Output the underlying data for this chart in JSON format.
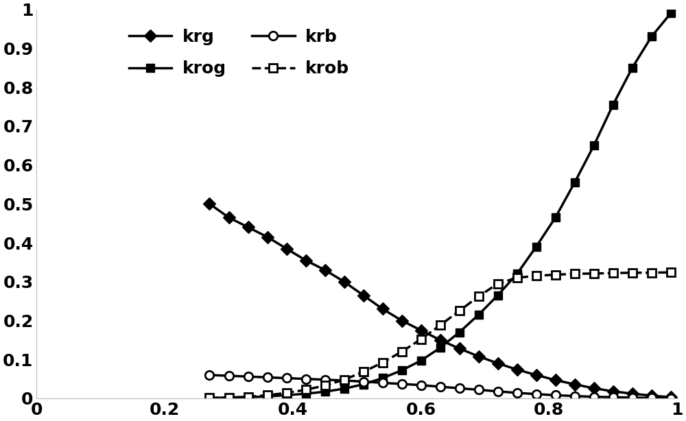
{
  "krg_x": [
    0.27,
    0.3,
    0.33,
    0.36,
    0.39,
    0.42,
    0.45,
    0.48,
    0.51,
    0.54,
    0.57,
    0.6,
    0.63,
    0.66,
    0.69,
    0.72,
    0.75,
    0.78,
    0.81,
    0.84,
    0.87,
    0.9,
    0.93,
    0.96,
    0.99
  ],
  "krg_y": [
    0.5,
    0.465,
    0.44,
    0.415,
    0.385,
    0.355,
    0.33,
    0.3,
    0.265,
    0.23,
    0.2,
    0.175,
    0.15,
    0.128,
    0.108,
    0.09,
    0.074,
    0.06,
    0.047,
    0.036,
    0.026,
    0.018,
    0.012,
    0.007,
    0.003
  ],
  "krog_x": [
    0.27,
    0.3,
    0.33,
    0.36,
    0.39,
    0.42,
    0.45,
    0.48,
    0.51,
    0.54,
    0.57,
    0.6,
    0.63,
    0.66,
    0.69,
    0.72,
    0.75,
    0.78,
    0.81,
    0.84,
    0.87,
    0.9,
    0.93,
    0.96,
    0.99
  ],
  "krog_y": [
    0.001,
    0.002,
    0.003,
    0.005,
    0.008,
    0.012,
    0.017,
    0.025,
    0.036,
    0.052,
    0.072,
    0.097,
    0.13,
    0.17,
    0.215,
    0.265,
    0.32,
    0.39,
    0.465,
    0.555,
    0.65,
    0.755,
    0.85,
    0.93,
    0.99
  ],
  "krb_x": [
    0.27,
    0.3,
    0.33,
    0.36,
    0.39,
    0.42,
    0.45,
    0.48,
    0.51,
    0.54,
    0.57,
    0.6,
    0.63,
    0.66,
    0.69,
    0.72,
    0.75,
    0.78,
    0.81,
    0.84,
    0.87,
    0.9,
    0.93,
    0.96,
    0.99
  ],
  "krb_y": [
    0.06,
    0.058,
    0.056,
    0.054,
    0.052,
    0.05,
    0.048,
    0.046,
    0.043,
    0.04,
    0.037,
    0.034,
    0.03,
    0.026,
    0.022,
    0.018,
    0.014,
    0.011,
    0.008,
    0.006,
    0.004,
    0.003,
    0.002,
    0.001,
    0.0005
  ],
  "krob_x": [
    0.27,
    0.3,
    0.33,
    0.36,
    0.39,
    0.42,
    0.45,
    0.48,
    0.51,
    0.54,
    0.57,
    0.6,
    0.63,
    0.66,
    0.69,
    0.72,
    0.75,
    0.78,
    0.81,
    0.84,
    0.87,
    0.9,
    0.93,
    0.96,
    0.99
  ],
  "krob_y": [
    0.001,
    0.002,
    0.004,
    0.008,
    0.014,
    0.022,
    0.033,
    0.048,
    0.068,
    0.092,
    0.12,
    0.152,
    0.188,
    0.225,
    0.262,
    0.295,
    0.31,
    0.315,
    0.318,
    0.32,
    0.321,
    0.322,
    0.323,
    0.323,
    0.324
  ],
  "xlim": [
    0.0,
    1.0
  ],
  "ylim": [
    0.0,
    1.0
  ],
  "xticks": [
    0,
    0.2,
    0.4,
    0.6,
    0.8,
    1.0
  ],
  "yticks": [
    0,
    0.1,
    0.2,
    0.3,
    0.4,
    0.5,
    0.6,
    0.7,
    0.8,
    0.9,
    1.0
  ],
  "line_color": "#000000",
  "bg_color": "#ffffff",
  "linewidth": 2.5,
  "markersize": 9
}
